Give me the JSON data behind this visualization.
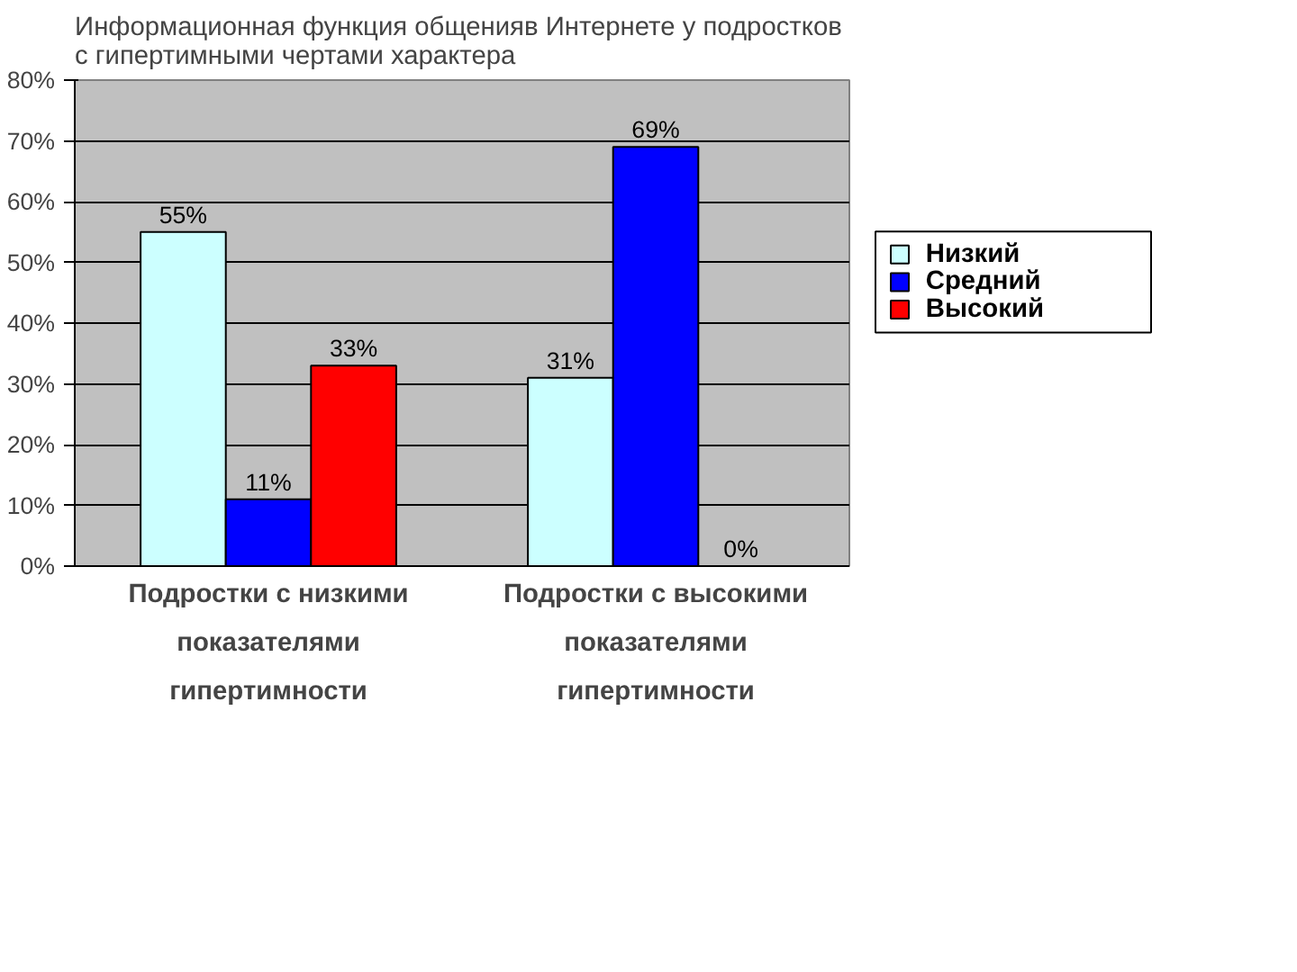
{
  "chart_data": {
    "type": "bar",
    "title": "Информационная функция общенияв Интернете  у подростков\nс гипертимными чертами характера",
    "categories": [
      "Подростки с низкими\nпоказателями\nгипертимности",
      "Подростки с высокими\nпоказателями\nгипертимности"
    ],
    "series": [
      {
        "name": "Низкий",
        "color": "#ccffff",
        "values": [
          55,
          31
        ],
        "value_labels": [
          "55%",
          "31%"
        ]
      },
      {
        "name": "Средний",
        "color": "#0000ff",
        "values": [
          11,
          69
        ],
        "value_labels": [
          "11%",
          "69%"
        ]
      },
      {
        "name": "Высокий",
        "color": "#ff0000",
        "values": [
          33,
          0
        ],
        "value_labels": [
          "33%",
          "0%"
        ]
      }
    ],
    "ylim": [
      0,
      80
    ],
    "yticks": [
      {
        "value": 0,
        "label": "0%"
      },
      {
        "value": 10,
        "label": "10%"
      },
      {
        "value": 20,
        "label": "20%"
      },
      {
        "value": 30,
        "label": "30%"
      },
      {
        "value": 40,
        "label": "40%"
      },
      {
        "value": 50,
        "label": "50%"
      },
      {
        "value": 60,
        "label": "60%"
      },
      {
        "value": 70,
        "label": "70%"
      },
      {
        "value": 80,
        "label": "80%"
      }
    ],
    "grid": "y",
    "legend": "right"
  }
}
